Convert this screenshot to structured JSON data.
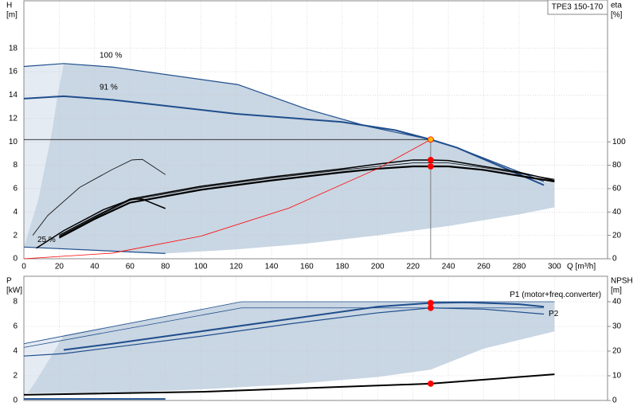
{
  "chart_data": [
    {
      "type": "line",
      "title": "TPE3 150-170",
      "y_label": [
        "H",
        "[m]"
      ],
      "y2_label": [
        "eta",
        "[%]"
      ],
      "x_label": "Q [m³/h]",
      "xlim": [
        0,
        330
      ],
      "ylim": [
        0,
        22
      ],
      "y2lim": [
        0,
        220
      ],
      "xticks": [
        0,
        20,
        40,
        60,
        80,
        100,
        120,
        140,
        160,
        180,
        200,
        220,
        240,
        260,
        280,
        300
      ],
      "yticks": [
        0,
        2,
        4,
        6,
        8,
        10,
        12,
        14,
        16,
        18
      ],
      "y2ticks": [
        0,
        20,
        40,
        60,
        80,
        100
      ],
      "grid": true,
      "regions": [
        {
          "color": "#c9d6e3",
          "x": [
            22.5,
            50,
            121,
            160,
            195,
            230,
            245,
            294,
            300,
            300,
            280,
            240,
            200,
            160,
            120,
            80,
            0,
            2,
            8,
            12,
            16,
            19
          ],
          "values": [
            16.7,
            16.4,
            14.9,
            12.8,
            11.3,
            10.2,
            9.5,
            6.6,
            6.5,
            4.4,
            3.8,
            2.8,
            2.0,
            1.3,
            0.8,
            0.45,
            1.0,
            2,
            5,
            8,
            11,
            14
          ]
        },
        {
          "color": "#e4ebf3",
          "x": [
            0,
            22.5,
            19,
            16,
            12,
            8,
            2,
            0
          ],
          "values": [
            16.45,
            16.7,
            14,
            11,
            8,
            5,
            2,
            1.0
          ]
        }
      ],
      "series": [
        {
          "label": "100 %",
          "color": "#1f4e8c",
          "width": 1.2,
          "x": [
            0,
            22.5,
            50,
            121,
            160,
            195,
            230,
            245,
            294
          ],
          "values": [
            16.45,
            16.7,
            16.4,
            14.9,
            12.8,
            11.3,
            10.2,
            9.5,
            6.6
          ]
        },
        {
          "label": "91 %",
          "color": "#1f4e8c",
          "width": 2,
          "x": [
            0,
            22.5,
            50,
            120,
            180,
            210,
            230,
            245,
            294
          ],
          "values": [
            13.7,
            13.9,
            13.6,
            12.4,
            11.7,
            11.0,
            10.2,
            9.5,
            6.3
          ]
        },
        {
          "label": "25 %",
          "color": "#1f4e8c",
          "width": 1.2,
          "x": [
            0,
            80
          ],
          "values": [
            1.0,
            0.45
          ]
        },
        {
          "color": "#000000",
          "width": 1.5,
          "axis": "y2",
          "x": [
            20,
            40,
            60,
            100,
            140,
            180,
            200,
            220,
            230,
            240,
            260,
            280,
            300
          ],
          "values": [
            20,
            36,
            51,
            62,
            70,
            77,
            81,
            84.5,
            84.5,
            84,
            79,
            74,
            67
          ]
        },
        {
          "color": "#000000",
          "width": 0.8,
          "axis": "y2",
          "x": [
            20,
            40,
            60,
            100,
            140,
            180,
            200,
            220,
            230,
            240,
            260,
            280,
            300
          ],
          "values": [
            19,
            35,
            50,
            61,
            69,
            76,
            79,
            82,
            82,
            82,
            78,
            73,
            68
          ]
        },
        {
          "color": "#000000",
          "width": 2.2,
          "axis": "y2",
          "x": [
            20,
            40,
            60,
            100,
            140,
            180,
            200,
            220,
            230,
            240,
            260,
            280,
            300
          ],
          "values": [
            18,
            34,
            48,
            59,
            67,
            74,
            77,
            79,
            79,
            79,
            76,
            71,
            66
          ]
        },
        {
          "color": "#000000",
          "width": 0.8,
          "axis": "y2",
          "x": [
            5,
            13.5,
            31.5,
            49.5,
            61,
            67,
            80
          ],
          "values": [
            20,
            37,
            61,
            76,
            84.5,
            85,
            72
          ]
        },
        {
          "color": "#000000",
          "width": 1.5,
          "axis": "y2",
          "x": [
            7,
            22.5,
            45,
            61,
            67,
            80
          ],
          "values": [
            9,
            24,
            42,
            51,
            51,
            43
          ]
        },
        {
          "color": "#ff0000",
          "width": 0.8,
          "x": [
            0,
            50,
            100,
            150,
            200,
            230
          ],
          "values": [
            0,
            0.48,
            1.93,
            4.34,
            7.71,
            10.2
          ]
        }
      ],
      "markers": [
        {
          "x": 230,
          "y": 10.2,
          "color": "#ffc000",
          "crosshair": true
        },
        {
          "x": 230,
          "y": 84.5,
          "axis": "y2",
          "color": "#ff0000"
        },
        {
          "x": 230,
          "y": 79,
          "axis": "y2",
          "color": "#ff0000"
        }
      ]
    },
    {
      "type": "line",
      "y_label": [
        "P",
        "[kW]"
      ],
      "y2_label": [
        "NPSH",
        "[m]"
      ],
      "xlim": [
        0,
        330
      ],
      "ylim": [
        0,
        10
      ],
      "y2lim": [
        0,
        50
      ],
      "yticks": [
        0,
        2,
        4,
        6,
        8
      ],
      "y2ticks": [
        0,
        10,
        20,
        30,
        40
      ],
      "grid": true,
      "regions": [
        {
          "color": "#c9d6e3",
          "x": [
            22.5,
            123,
            300,
            300,
            260,
            230,
            200,
            150,
            100,
            50,
            2,
            6,
            12,
            18
          ],
          "values": [
            5.3,
            8.0,
            8.0,
            5.6,
            4.2,
            2.5,
            1.9,
            1.3,
            0.9,
            0.6,
            0.6,
            1.4,
            2.8,
            4.2
          ]
        },
        {
          "color": "#e4ebf3",
          "x": [
            0,
            22.5,
            18,
            12,
            6,
            2,
            0
          ],
          "values": [
            4.6,
            5.3,
            4.2,
            2.8,
            1.4,
            0.6,
            0.5
          ]
        }
      ],
      "series": [
        {
          "color": "#1f4e8c",
          "width": 0.8,
          "x": [
            0,
            123,
            300
          ],
          "values": [
            4.6,
            8.0,
            8.0
          ]
        },
        {
          "color": "#1f4e8c",
          "width": 0.8,
          "x": [
            0,
            123,
            294
          ],
          "values": [
            4.3,
            7.5,
            7.5
          ]
        },
        {
          "label": "P1 (motor+freq.converter)",
          "color": "#1f4e8c",
          "width": 2,
          "x": [
            22.5,
            50,
            100,
            150,
            200,
            230,
            250,
            280,
            294
          ],
          "values": [
            4.1,
            4.6,
            5.6,
            6.6,
            7.6,
            7.9,
            7.95,
            7.8,
            7.6
          ]
        },
        {
          "label": "P2",
          "color": "#1f4e8c",
          "width": 1.2,
          "x": [
            0,
            22.5,
            100,
            150,
            200,
            230,
            260,
            294
          ],
          "values": [
            3.6,
            3.8,
            5.2,
            6.2,
            7.1,
            7.5,
            7.4,
            7.0
          ]
        },
        {
          "color": "#000000",
          "width": 2,
          "axis": "y2",
          "x": [
            0,
            100,
            230,
            300
          ],
          "values": [
            2.3,
            3.5,
            6.8,
            10.6
          ]
        },
        {
          "color": "#1f4e8c",
          "width": 2,
          "axis": "y2",
          "x": [
            0,
            80
          ],
          "values": [
            0.6,
            0.6
          ]
        }
      ],
      "markers": [
        {
          "x": 230,
          "y": 7.9,
          "color": "#ff0000"
        },
        {
          "x": 230,
          "y": 7.5,
          "color": "#ff0000"
        },
        {
          "x": 230,
          "y": 6.8,
          "axis": "y2",
          "color": "#ff0000"
        }
      ]
    }
  ]
}
